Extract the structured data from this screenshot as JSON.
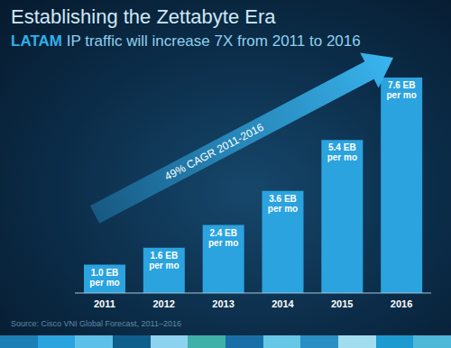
{
  "chart_data": {
    "type": "bar",
    "title": "Establishing the Zettabyte Era",
    "subtitle": "LATAM IP traffic will increase 7X from 2011 to 2016",
    "annotation": "49% CAGR 2011-2016",
    "source": "Source: Cisco VNI Global Forecast, 2011–2016",
    "categories": [
      "2011",
      "2012",
      "2013",
      "2014",
      "2015",
      "2016"
    ],
    "values": [
      1.0,
      1.6,
      2.4,
      3.6,
      5.4,
      7.6
    ],
    "value_labels": [
      "1.0 EB per mo",
      "1.6 EB per mo",
      "2.4 EB per mo",
      "3.6 EB per mo",
      "5.4 EB per mo",
      "7.6 EB per mo"
    ],
    "data_labels": true,
    "tick_labels": "x",
    "grid": false,
    "color": "#2aa3df"
  }
}
